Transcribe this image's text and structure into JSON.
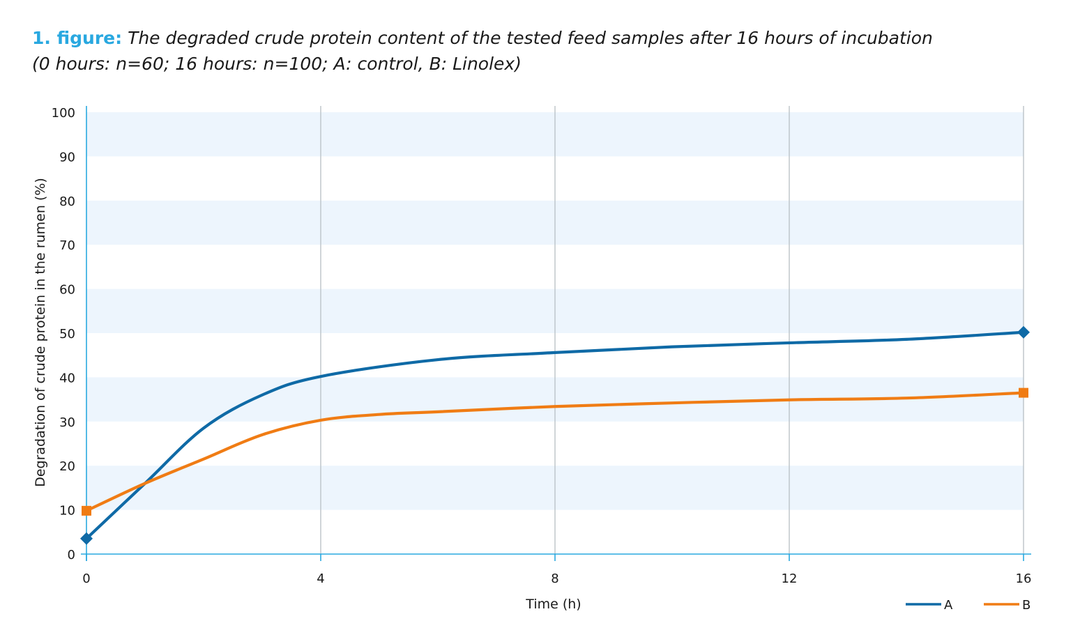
{
  "figure": {
    "prefix": "1. figure:",
    "title": "The degraded crude protein content of the tested feed samples after 16 hours of incubation",
    "subtitle": "(0 hours: n=60; 16 hours: n=100; A: control, B: Linolex)"
  },
  "chart_data": {
    "type": "line",
    "title": "The degraded crude protein content of the tested feed samples after 16 hours of incubation",
    "subtitle": "(0 hours: n=60; 16 hours: n=100; A: control, B: Linolex)",
    "xlabel": "Time (h)",
    "ylabel": "Degradation of crude protein in the rumen (%)",
    "xlim": [
      0,
      16
    ],
    "ylim": [
      0,
      100
    ],
    "xticks": [
      0,
      4,
      8,
      12,
      16
    ],
    "yticks": [
      0,
      10,
      20,
      30,
      40,
      50,
      60,
      70,
      80,
      90,
      100
    ],
    "grid": "vertical gridlines at x ticks; alternating horizontal bands every 10%",
    "legend_position": "bottom-right",
    "series": [
      {
        "name": "A",
        "color": "#0f6aa6",
        "marker": "diamond",
        "marker_points": [
          [
            0,
            3.5
          ],
          [
            16,
            50.2
          ]
        ],
        "curve": [
          [
            0,
            3.5
          ],
          [
            1,
            16
          ],
          [
            2,
            28.5
          ],
          [
            3,
            36
          ],
          [
            4,
            40.2
          ],
          [
            6,
            44
          ],
          [
            8,
            45.6
          ],
          [
            10,
            46.9
          ],
          [
            12,
            47.8
          ],
          [
            14,
            48.6
          ],
          [
            16,
            50.2
          ]
        ]
      },
      {
        "name": "B",
        "color": "#f07c14",
        "marker": "square",
        "marker_points": [
          [
            0,
            9.8
          ],
          [
            16,
            36.5
          ]
        ],
        "curve": [
          [
            0,
            9.8
          ],
          [
            1,
            16
          ],
          [
            2,
            21.5
          ],
          [
            3,
            27
          ],
          [
            4,
            30.3
          ],
          [
            5,
            31.6
          ],
          [
            6,
            32.2
          ],
          [
            8,
            33.4
          ],
          [
            10,
            34.2
          ],
          [
            12,
            34.9
          ],
          [
            14,
            35.3
          ],
          [
            16,
            36.5
          ]
        ]
      }
    ]
  }
}
